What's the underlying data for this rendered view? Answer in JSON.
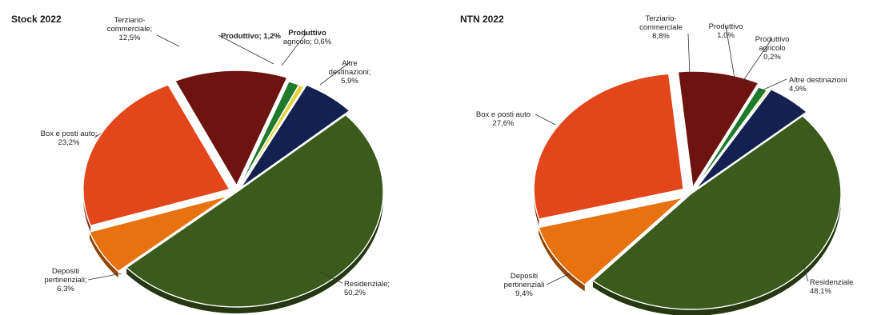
{
  "chart_data": [
    {
      "type": "pie",
      "title": "Stock 2022",
      "slices": [
        {
          "label": "Residenziale",
          "value": 50.2,
          "display": "50,2%",
          "color": "#3b5a1c",
          "label_lines": [
            "Residenziale;",
            "50,2%"
          ]
        },
        {
          "label": "Depositi pertinenziali",
          "value": 6.3,
          "display": "6,3%",
          "color": "#e8720f",
          "label_lines": [
            "Depositi",
            "pertinenziali;",
            "6,3%"
          ]
        },
        {
          "label": "Box e posti auto",
          "value": 23.2,
          "display": "23,2%",
          "color": "#e2461a",
          "label_lines": [
            "Box e posti auto;",
            "23,2%"
          ]
        },
        {
          "label": "Terziario-commerciale",
          "value": 12.5,
          "display": "12,5%",
          "color": "#6e1410",
          "label_lines": [
            "Terziario-",
            "commerciale;",
            "12,5%"
          ]
        },
        {
          "label": "Produttivo",
          "value": 1.2,
          "display": "1,2%",
          "color": "#1f7a2a",
          "label_lines": [
            "Produttivo; 1,2%"
          ]
        },
        {
          "label": "Produttivo agricolo",
          "value": 0.6,
          "display": "0,6%",
          "color": "#e3d23a",
          "label_lines": [
            "Produttivo",
            "agricolo; 0,6%"
          ]
        },
        {
          "label": "Altre destinazioni",
          "value": 5.9,
          "display": "5,9%",
          "color": "#14204f",
          "label_lines": [
            "Altre",
            "destinazioni;",
            "5,9%"
          ]
        }
      ]
    },
    {
      "type": "pie",
      "title": "NTN 2022",
      "slices": [
        {
          "label": "Residenziale",
          "value": 48.1,
          "display": "48,1%",
          "color": "#3b5a1c",
          "label_lines": [
            "Residenziale",
            "48,1%"
          ]
        },
        {
          "label": "Depositi pertinenziali",
          "value": 9.4,
          "display": "9,4%",
          "color": "#e8720f",
          "label_lines": [
            "Depositi",
            "pertinenziali",
            "9,4%"
          ]
        },
        {
          "label": "Box e posti auto",
          "value": 27.6,
          "display": "27,6%",
          "color": "#e2461a",
          "label_lines": [
            "Box e posti auto",
            "27,6%"
          ]
        },
        {
          "label": "Terziario-commerciale",
          "value": 8.8,
          "display": "8,8%",
          "color": "#6e1410",
          "label_lines": [
            "Terziario-",
            "commerciale",
            "8,8%"
          ]
        },
        {
          "label": "Produttivo",
          "value": 1.0,
          "display": "1,0%",
          "color": "#1f7a2a",
          "label_lines": [
            "Produttivo",
            "1,0%"
          ]
        },
        {
          "label": "Produttivo agricolo",
          "value": 0.2,
          "display": "0,2%",
          "color": "#e3d23a",
          "label_lines": [
            "Produttivo",
            "agricolo",
            "0,2%"
          ]
        },
        {
          "label": "Altre destinazioni",
          "value": 4.9,
          "display": "4,9%",
          "color": "#14204f",
          "label_lines": [
            "Altre destinazioni",
            "4,9%"
          ]
        }
      ]
    }
  ]
}
